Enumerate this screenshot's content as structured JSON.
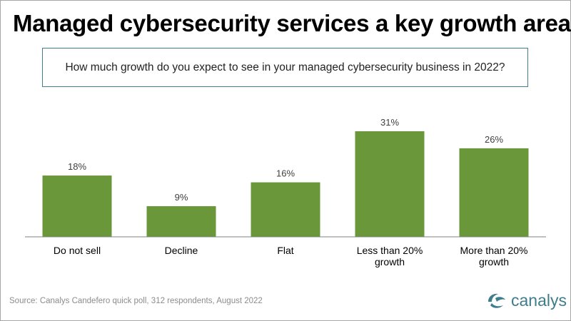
{
  "title": "Managed cybersecurity services a key growth area",
  "question": "How much growth do you expect to see in your managed cybersecurity business in 2022?",
  "source": "Source: Canalys Candefero quick poll, 312 respondents, August 2022",
  "logo": {
    "text": "canalys",
    "color": "#3e7d8c"
  },
  "colors": {
    "bar": "#6a973a",
    "question_border": "#3f7f8a",
    "axis": "#808080"
  },
  "chart_data": {
    "type": "bar",
    "categories": [
      [
        "Do not sell"
      ],
      [
        "Decline"
      ],
      [
        "Flat"
      ],
      [
        "Less than 20%",
        "growth"
      ],
      [
        "More than 20%",
        "growth"
      ]
    ],
    "values": [
      18,
      9,
      16,
      31,
      26
    ],
    "value_labels": [
      "18%",
      "9%",
      "16%",
      "31%",
      "26%"
    ],
    "ylim": [
      0,
      31
    ],
    "grid": false,
    "legend": "none"
  }
}
